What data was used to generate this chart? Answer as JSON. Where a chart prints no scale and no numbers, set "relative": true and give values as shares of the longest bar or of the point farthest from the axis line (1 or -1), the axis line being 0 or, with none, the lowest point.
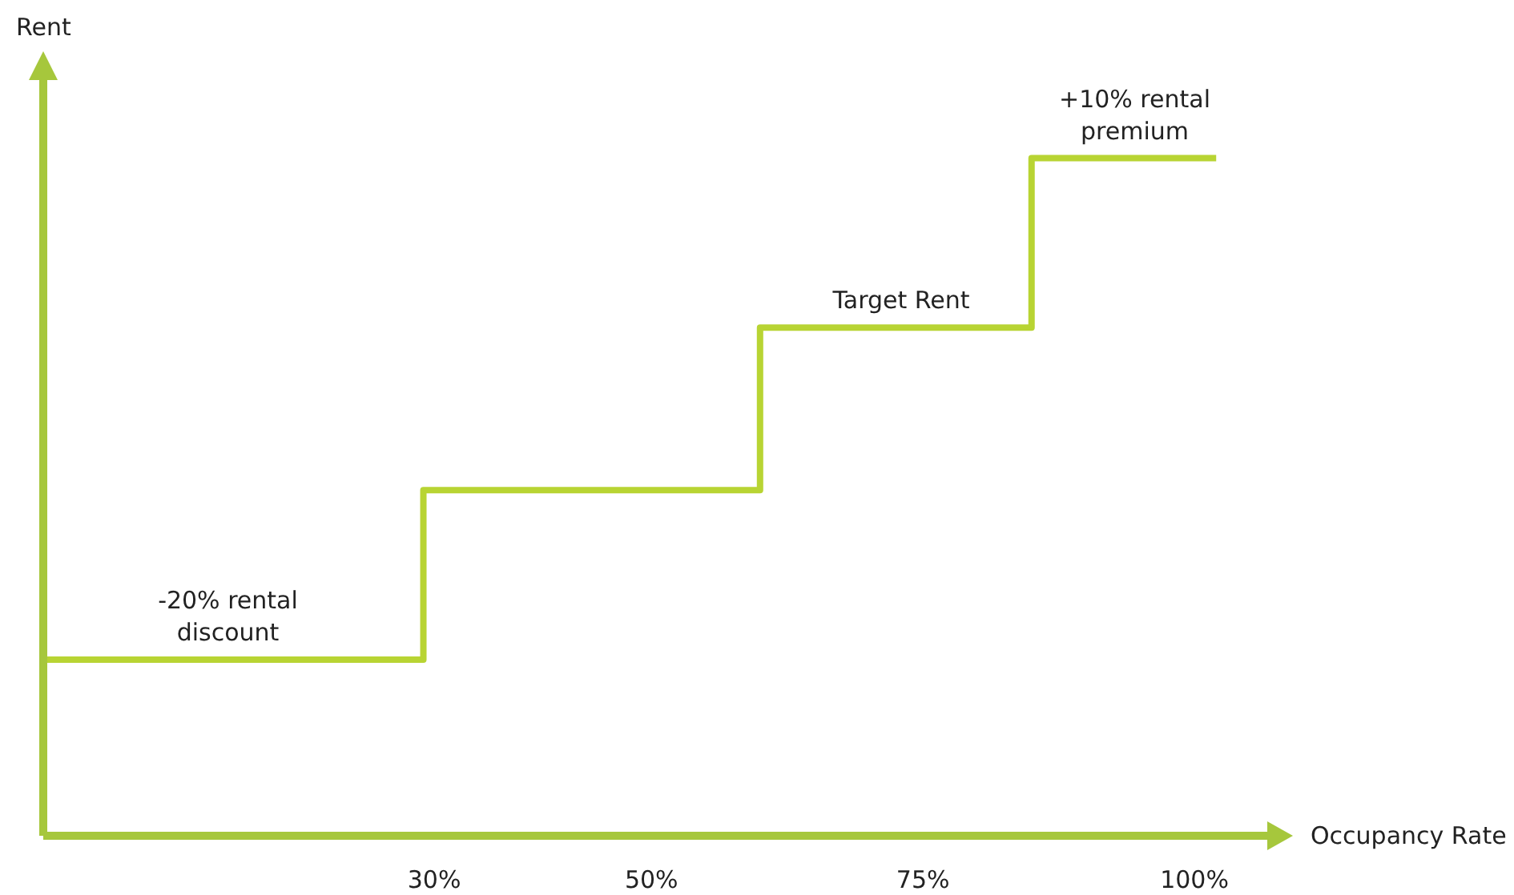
{
  "chart_data": {
    "type": "step",
    "xlabel": "Occupancy Rate",
    "ylabel": "Rent",
    "relative": true,
    "x": [
      -6,
      29,
      60,
      85,
      102
    ],
    "series": [
      {
        "color": "#b8d433",
        "values": [
          0.26,
          0.51,
          0.75,
          1,
          1
        ]
      }
    ],
    "xlim": [
      -6,
      107
    ],
    "xticks": [
      {
        "value": 30,
        "label": "30%"
      },
      {
        "value": 50,
        "label": "50%"
      },
      {
        "value": 75,
        "label": "75%"
      },
      {
        "value": 100,
        "label": "100%"
      }
    ],
    "annotations": [
      {
        "text": "-20% rental\ndiscount",
        "x": 11,
        "y": 0.26
      },
      {
        "text": "Target Rent",
        "x": 73,
        "y": 0.75
      },
      {
        "text": "+10% rental\npremium",
        "x": 94.5,
        "y": 1
      }
    ]
  }
}
